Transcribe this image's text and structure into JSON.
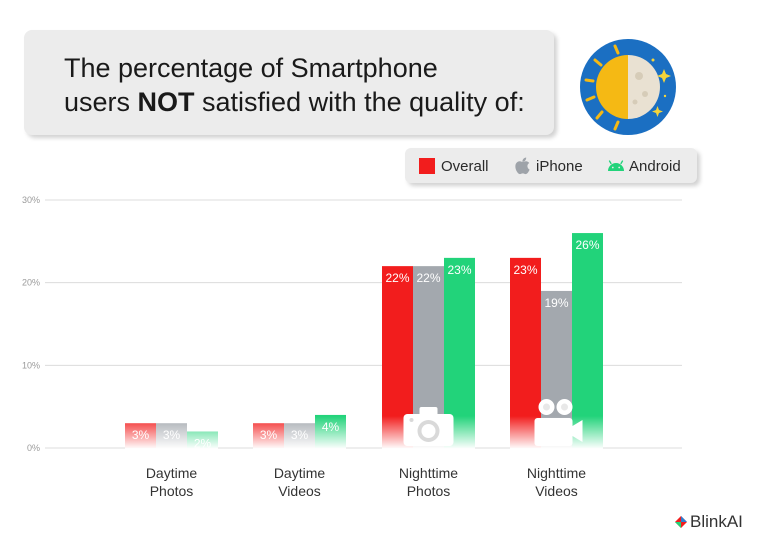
{
  "header": {
    "title_part1": "The percentage of Smartphone",
    "title_part2": "users ",
    "title_bold": "NOT",
    "title_part3": " satisfied with the quality of:"
  },
  "legend": {
    "overall": "Overall",
    "iphone": "iPhone",
    "android": "Android"
  },
  "brand": {
    "name": "BlinkAI"
  },
  "colors": {
    "overall": "#f21d1d",
    "iphone": "#a3a8ae",
    "android": "#22d37a"
  },
  "chart_data": {
    "type": "bar",
    "categories": [
      [
        "Daytime",
        "Photos"
      ],
      [
        "Daytime",
        "Videos"
      ],
      [
        "Nighttime",
        "Photos"
      ],
      [
        "Nighttime",
        "Videos"
      ]
    ],
    "series": [
      {
        "name": "Overall",
        "values": [
          3,
          3,
          22,
          23
        ],
        "labels": [
          "3%",
          "3%",
          "22%",
          "23%"
        ]
      },
      {
        "name": "iPhone",
        "values": [
          3,
          3,
          22,
          19
        ],
        "labels": [
          "3%",
          "3%",
          "22%",
          "19%"
        ]
      },
      {
        "name": "Android",
        "values": [
          2,
          4,
          23,
          26
        ],
        "labels": [
          "2%",
          "4%",
          "23%",
          "26%"
        ]
      }
    ],
    "yticks": [
      "0%",
      "10%",
      "20%",
      "30%"
    ],
    "ylim": [
      0,
      30
    ],
    "grid": true,
    "legend_position": "top-right",
    "icons": [
      "",
      "",
      "camera-icon",
      "video-camera-icon"
    ]
  }
}
